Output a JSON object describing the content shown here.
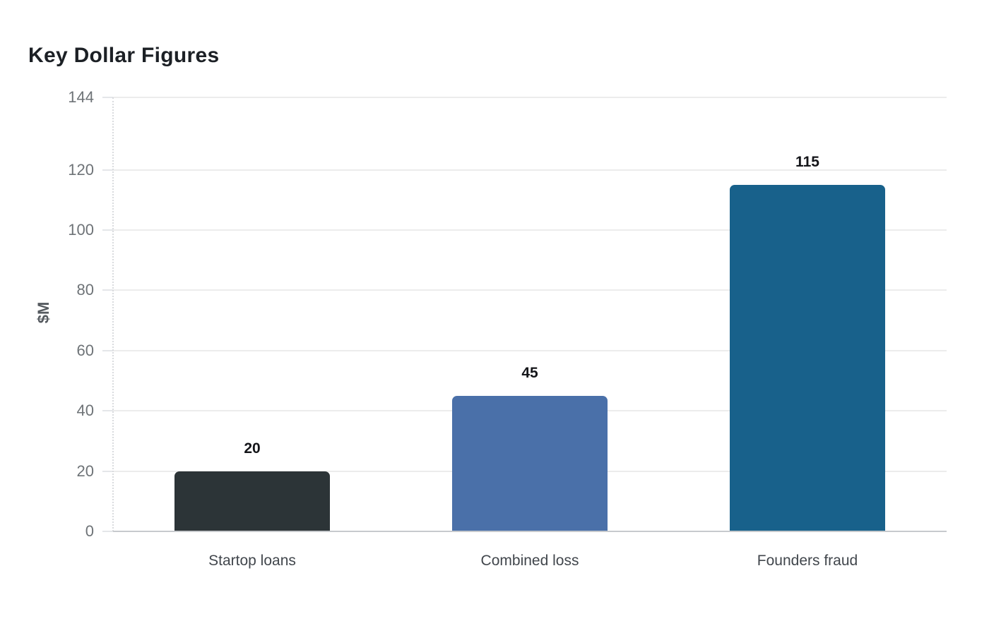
{
  "title": "Key Dollar Figures",
  "chart_data": {
    "type": "bar",
    "title": "Key Dollar Figures",
    "categories": [
      "Startop loans",
      "Combined loss",
      "Founders fraud"
    ],
    "values": [
      20,
      45,
      115
    ],
    "value_labels": [
      "20",
      "45",
      "115"
    ],
    "bar_colors": [
      "#2c3437",
      "#4a70a9",
      "#18618b"
    ],
    "xlabel": "",
    "ylabel": "$M",
    "ylim": [
      0,
      144
    ],
    "yticks": [
      0,
      20,
      40,
      60,
      80,
      100,
      120,
      144
    ],
    "grid": "horizontal",
    "legend": "none",
    "colors": {
      "background": "#ffffff",
      "title": "#1c2025",
      "axis_title": "#555a5f",
      "tick_label": "#6e7377",
      "category_label": "#41464c",
      "value_label": "#141519",
      "grid_line": "#ececec",
      "tick_mark": "#e4e6e9",
      "axis_line": "#c7cacd",
      "plot_border_dotted": "#d9dbde"
    }
  }
}
